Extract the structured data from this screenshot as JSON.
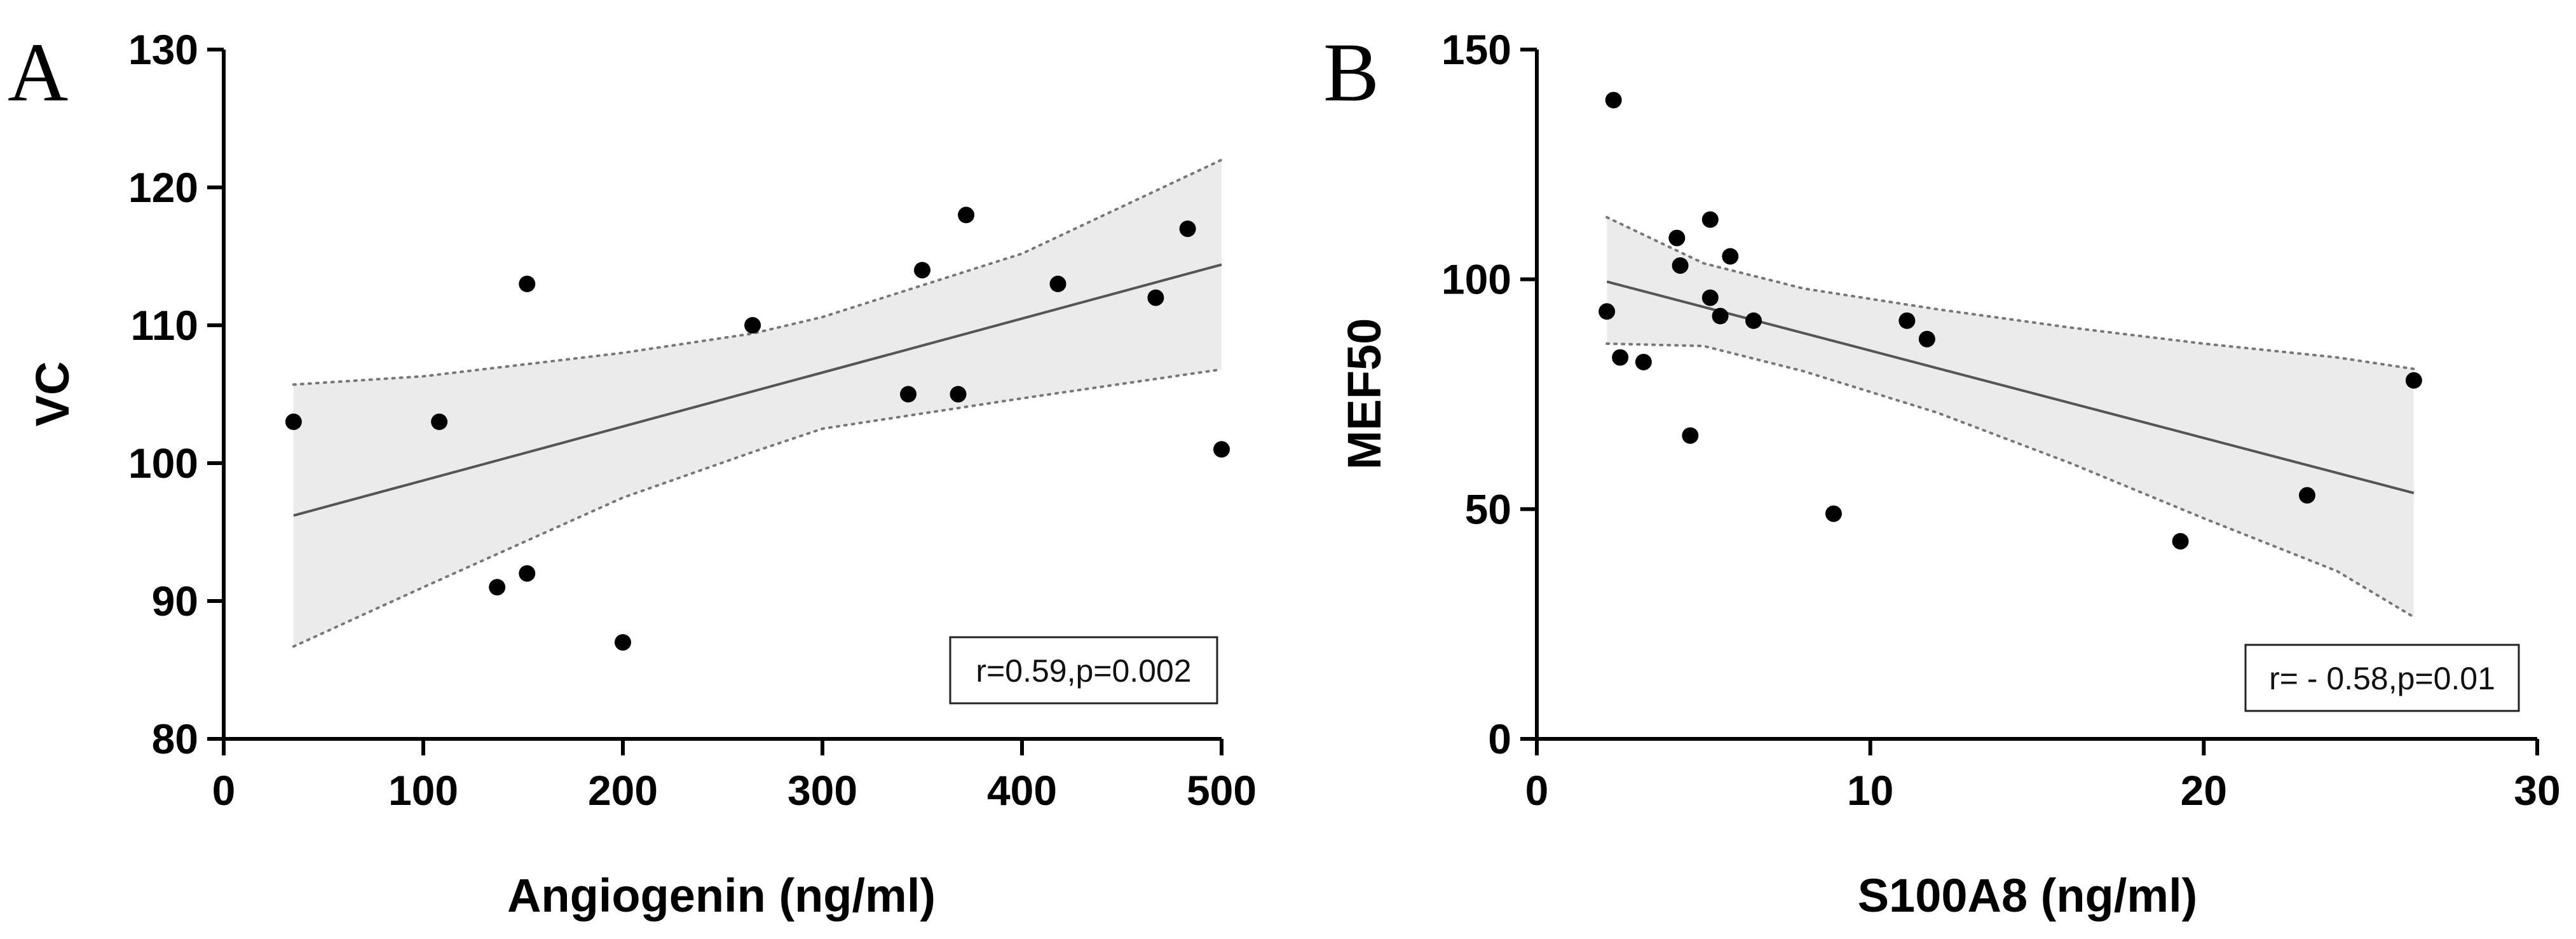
{
  "chart_data": [
    {
      "type": "scatter",
      "panel_label": "A",
      "xlabel": "Angiogenin (ng/ml)",
      "ylabel": "VC",
      "xlim": [
        0,
        500
      ],
      "ylim": [
        80,
        130
      ],
      "xticks": [
        0,
        100,
        200,
        300,
        400,
        500
      ],
      "yticks": [
        80,
        90,
        100,
        110,
        120,
        130
      ],
      "points": [
        {
          "x": 35,
          "y": 103
        },
        {
          "x": 108,
          "y": 103
        },
        {
          "x": 137,
          "y": 91
        },
        {
          "x": 152,
          "y": 92
        },
        {
          "x": 152,
          "y": 113
        },
        {
          "x": 200,
          "y": 87
        },
        {
          "x": 265,
          "y": 110
        },
        {
          "x": 343,
          "y": 105
        },
        {
          "x": 350,
          "y": 114
        },
        {
          "x": 368,
          "y": 105
        },
        {
          "x": 372,
          "y": 118
        },
        {
          "x": 418,
          "y": 113
        },
        {
          "x": 467,
          "y": 112
        },
        {
          "x": 483,
          "y": 117
        },
        {
          "x": 500,
          "y": 101
        }
      ],
      "regression": {
        "x": [
          35,
          500
        ],
        "y": [
          96.2,
          114.4
        ]
      },
      "confidence_band": {
        "x": [
          35,
          100,
          200,
          265,
          300,
          400,
          500
        ],
        "upper": [
          105.7,
          106.3,
          108.0,
          109.4,
          110.6,
          115.2,
          122.0
        ],
        "lower": [
          86.7,
          91.0,
          97.5,
          100.8,
          102.5,
          104.7,
          106.8
        ]
      },
      "annotation": "r=0.59,p=0.002"
    },
    {
      "type": "scatter",
      "panel_label": "B",
      "xlabel": "S100A8 (ng/ml)",
      "ylabel": "MEF50",
      "xlim": [
        0,
        30
      ],
      "ylim": [
        0,
        150
      ],
      "xticks": [
        0,
        10,
        20,
        30
      ],
      "yticks": [
        0,
        50,
        100,
        150
      ],
      "points": [
        {
          "x": 2.1,
          "y": 93
        },
        {
          "x": 2.3,
          "y": 139
        },
        {
          "x": 2.5,
          "y": 83
        },
        {
          "x": 3.2,
          "y": 82
        },
        {
          "x": 4.2,
          "y": 109
        },
        {
          "x": 4.3,
          "y": 103
        },
        {
          "x": 4.6,
          "y": 66
        },
        {
          "x": 5.2,
          "y": 113
        },
        {
          "x": 5.2,
          "y": 96
        },
        {
          "x": 5.5,
          "y": 92
        },
        {
          "x": 5.8,
          "y": 105
        },
        {
          "x": 6.5,
          "y": 91
        },
        {
          "x": 8.9,
          "y": 49
        },
        {
          "x": 11.1,
          "y": 91
        },
        {
          "x": 11.7,
          "y": 87
        },
        {
          "x": 19.3,
          "y": 43
        },
        {
          "x": 23.1,
          "y": 53
        },
        {
          "x": 26.3,
          "y": 78
        }
      ],
      "regression": {
        "x": [
          2.1,
          26.3
        ],
        "y": [
          99.5,
          53.5
        ]
      },
      "confidence_band": {
        "x": [
          2.1,
          5,
          8,
          12,
          16,
          20,
          24,
          26.3
        ],
        "upper": [
          113.5,
          103.5,
          98.0,
          93.5,
          89.5,
          86.0,
          83.0,
          80.5
        ],
        "lower": [
          86.0,
          85.5,
          80.0,
          71.0,
          60.0,
          48.0,
          36.5,
          26.5
        ]
      },
      "annotation": "r= - 0.58,p=0.01"
    }
  ]
}
